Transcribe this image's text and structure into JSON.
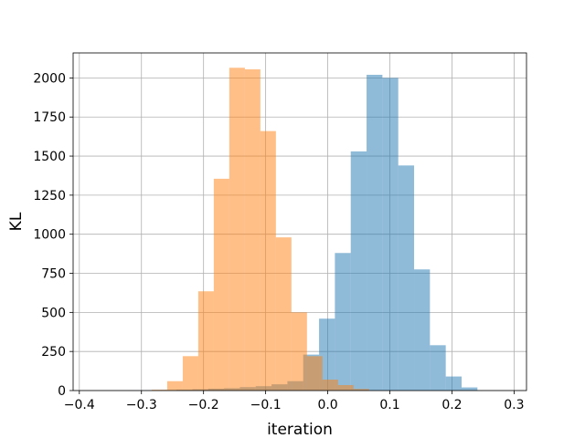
{
  "chart_data": {
    "type": "histogram",
    "title": "",
    "xlabel": "iteration",
    "ylabel": "KL",
    "xlim": [
      -0.41,
      0.32
    ],
    "ylim": [
      0,
      2160
    ],
    "xticks": [
      -0.4,
      -0.3,
      -0.2,
      -0.1,
      0.0,
      0.1,
      0.2,
      0.3
    ],
    "xtick_labels": [
      "−0.4",
      "−0.3",
      "−0.2",
      "−0.1",
      "0.0",
      "0.1",
      "0.2",
      "0.3"
    ],
    "yticks": [
      0,
      250,
      500,
      750,
      1000,
      1250,
      1500,
      1750,
      2000
    ],
    "ytick_labels": [
      "0",
      "250",
      "500",
      "750",
      "1000",
      "1250",
      "1500",
      "1750",
      "2000"
    ],
    "grid": true,
    "legend": false,
    "series": [
      {
        "color": "#1f77b4",
        "alpha": 0.5,
        "bins": [
          -0.32,
          -0.2945,
          -0.269,
          -0.2435,
          -0.218,
          -0.1925,
          -0.167,
          -0.1415,
          -0.116,
          -0.0905,
          -0.065,
          -0.0395,
          -0.014,
          0.0115,
          0.037,
          0.0625,
          0.088,
          0.1135,
          0.139,
          0.1645,
          0.19,
          0.2155,
          0.241
        ],
        "counts": [
          1,
          2,
          3,
          5,
          8,
          12,
          15,
          22,
          28,
          40,
          60,
          230,
          460,
          880,
          1530,
          2020,
          2000,
          1440,
          775,
          290,
          90,
          20
        ]
      },
      {
        "color": "#ff7f0e",
        "alpha": 0.5,
        "bins": [
          -0.2835,
          -0.2585,
          -0.2335,
          -0.2085,
          -0.1835,
          -0.1585,
          -0.1335,
          -0.1085,
          -0.0835,
          -0.0585,
          -0.0335,
          -0.0085,
          0.0165,
          0.0415,
          0.0665
        ],
        "counts": [
          5,
          60,
          220,
          635,
          1355,
          2065,
          2055,
          1660,
          980,
          500,
          220,
          70,
          35,
          10
        ]
      }
    ]
  }
}
